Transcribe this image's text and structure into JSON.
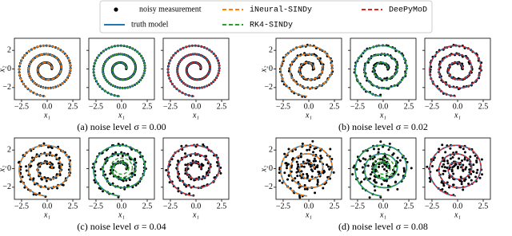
{
  "legend": {
    "entries": [
      {
        "label": "noisy measurement",
        "color": "#000000"
      },
      {
        "label": "truth model",
        "color": "#1f77b4"
      },
      {
        "label": "iNeural-SINDy",
        "color": "#ff7f0e"
      },
      {
        "label": "RK4-SINDy",
        "color": "#2ca02c"
      },
      {
        "label": "DeePyMoD",
        "color": "#d62728"
      }
    ]
  },
  "axes": {
    "xlim": [
      -3.2,
      3.2
    ],
    "ylim": [
      -3.3,
      3.3
    ],
    "xticks": [
      {
        "value": -2.5,
        "label": "−2.5"
      },
      {
        "value": 0,
        "label": "0.0"
      },
      {
        "value": 2.5,
        "label": "2.5"
      }
    ],
    "yticks": [
      {
        "value": 2,
        "label": "2"
      },
      {
        "value": 0,
        "label": "0"
      },
      {
        "value": -2,
        "label": "−2"
      }
    ],
    "xlabel": "x₁",
    "ylabel": "x₂"
  },
  "panels": [
    {
      "caption": "(a) noise level σ = 0.00",
      "noise": 0
    },
    {
      "caption": "(b) noise level σ = 0.02",
      "noise": 0.02
    },
    {
      "caption": "(c) noise level σ = 0.04",
      "noise": 0.04
    },
    {
      "caption": "(d) noise level σ = 0.08",
      "noise": 0.08
    }
  ]
}
